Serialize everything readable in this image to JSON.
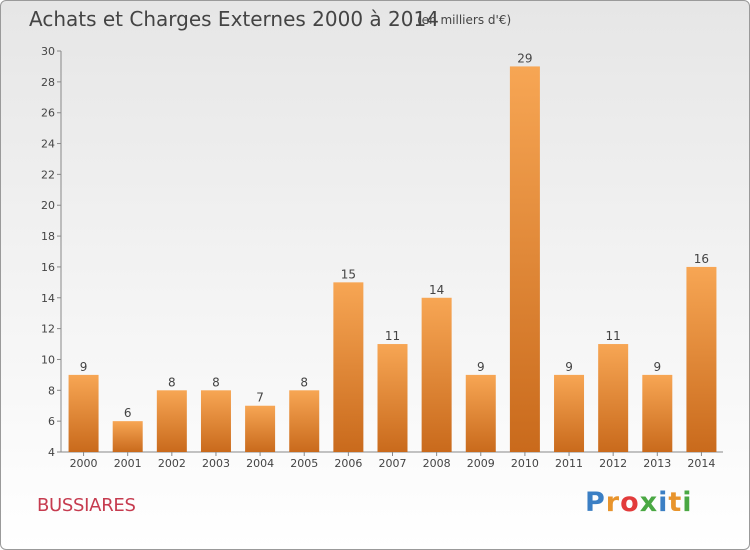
{
  "header": {
    "title": "Achats et Charges Externes 2000 à 2014",
    "subtitle": "(en milliers d'€)"
  },
  "footer": {
    "commune": "BUSSIARES",
    "brand": "Proxiti",
    "brand_colors": [
      "#3b7fc4",
      "#e8942c",
      "#e23b3b",
      "#4aa843",
      "#3b7fc4",
      "#e8942c",
      "#4aa843"
    ]
  },
  "chart_data": {
    "type": "bar",
    "title": "Achats et Charges Externes 2000 à 2014",
    "subtitle": "(en milliers d'€)",
    "xlabel": "",
    "ylabel": "",
    "categories": [
      "2000",
      "2001",
      "2002",
      "2003",
      "2004",
      "2005",
      "2006",
      "2007",
      "2008",
      "2009",
      "2010",
      "2011",
      "2012",
      "2013",
      "2014"
    ],
    "values": [
      9,
      6,
      8,
      8,
      7,
      8,
      15,
      11,
      14,
      9,
      29,
      9,
      11,
      9,
      16
    ],
    "ylim": [
      4,
      30
    ],
    "yticks": [
      4,
      6,
      8,
      10,
      12,
      14,
      16,
      18,
      20,
      22,
      24,
      26,
      28,
      30
    ],
    "grid": false,
    "legend": "none",
    "bar_color_top": "#f7a654",
    "bar_color_bottom": "#c96a1c",
    "axis_color": "#888888",
    "label_color": "#444444"
  }
}
